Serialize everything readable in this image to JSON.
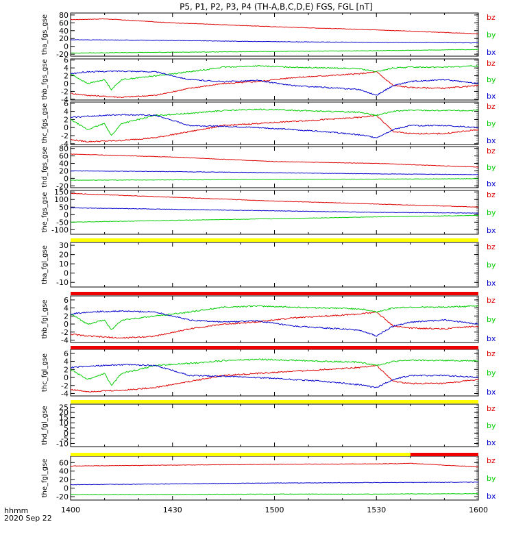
{
  "title": "P5, P1, P2, P3, P4 (TH-A,B,C,D,E) FGS, FGL [nT]",
  "time_axis": {
    "label_line1": "hhmm",
    "label_line2": "2020 Sep 22",
    "ticks": [
      "1400",
      "1430",
      "1500",
      "1530",
      "1600"
    ],
    "range_minutes": [
      0,
      120
    ]
  },
  "colors": {
    "bz": "#dd0000",
    "by": "#00cc00",
    "bx": "#0000cc",
    "bar_yellow": "#ffff00",
    "bar_red": "#ee0000"
  },
  "legend_labels": [
    "bz",
    "by",
    "bx"
  ],
  "chart_data": [
    {
      "type": "line",
      "panel": "tha_fgs_gse",
      "ylabel": "tha_fgs_gse",
      "ylim": [
        -25,
        85
      ],
      "yticks": [
        {
          "v": 80,
          "t": "80"
        },
        {
          "v": 60,
          "t": "60"
        },
        {
          "v": 40,
          "t": "40"
        },
        {
          "v": 20,
          "t": "20"
        },
        {
          "v": 0,
          "t": "0"
        },
        {
          "v": -20,
          "t": "-20"
        }
      ],
      "series": [
        {
          "name": "bz",
          "x": [
            0,
            10,
            30,
            60,
            90,
            120
          ],
          "values": [
            68,
            70,
            60,
            50,
            42,
            32
          ]
        },
        {
          "name": "by",
          "x": [
            0,
            30,
            60,
            90,
            120
          ],
          "values": [
            -17,
            -15,
            -13,
            -11,
            -8
          ]
        },
        {
          "name": "bx",
          "x": [
            0,
            30,
            60,
            90,
            120
          ],
          "values": [
            17,
            15,
            12,
            10,
            9
          ]
        }
      ]
    },
    {
      "type": "line",
      "panel": "thb_fgs_gse",
      "ylabel": "thb_fgs_gse",
      "ylim": [
        -4.2,
        6.3
      ],
      "yticks": [
        {
          "v": 6,
          "t": "6"
        },
        {
          "v": 4,
          "t": "4"
        },
        {
          "v": 2,
          "t": "2"
        },
        {
          "v": 0,
          "t": "0"
        },
        {
          "v": -2,
          "t": "-2"
        },
        {
          "v": -4,
          "t": "-4"
        }
      ],
      "series": [
        {
          "name": "bz",
          "x": [
            0,
            5,
            15,
            25,
            35,
            45,
            55,
            65,
            75,
            85,
            90,
            95,
            100,
            110,
            120
          ],
          "values": [
            -2.5,
            -3,
            -3.5,
            -3,
            -1.2,
            0,
            0.5,
            1.5,
            2,
            2.5,
            3,
            -0.5,
            -1,
            -1.2,
            -0.5
          ]
        },
        {
          "name": "by",
          "x": [
            0,
            5,
            10,
            12,
            15,
            25,
            35,
            45,
            55,
            65,
            75,
            85,
            90,
            95,
            100,
            110,
            120
          ],
          "values": [
            2.5,
            0,
            1,
            -1.5,
            1,
            2,
            3,
            4.2,
            4.5,
            4.2,
            4,
            3.8,
            3,
            4,
            4.2,
            4.2,
            4.5
          ]
        },
        {
          "name": "bx",
          "x": [
            0,
            5,
            15,
            25,
            35,
            45,
            55,
            65,
            75,
            85,
            90,
            95,
            100,
            110,
            120
          ],
          "values": [
            2.5,
            3,
            3.2,
            3,
            1,
            0.5,
            0.8,
            -0.5,
            -1,
            -1.5,
            -3,
            -0.5,
            0.5,
            1,
            0
          ]
        }
      ]
    },
    {
      "type": "line",
      "panel": "thc_fgs_gse",
      "ylabel": "thc_fgs_gse",
      "ylim": [
        -4.2,
        6.3
      ],
      "yticks": [
        {
          "v": 6,
          "t": "6"
        },
        {
          "v": 4,
          "t": "4"
        },
        {
          "v": 2,
          "t": "2"
        },
        {
          "v": 0,
          "t": "0"
        },
        {
          "v": -2,
          "t": "-2"
        },
        {
          "v": -4,
          "t": "-4"
        }
      ],
      "series": [
        {
          "name": "bz",
          "x": [
            0,
            5,
            15,
            25,
            35,
            45,
            55,
            65,
            75,
            85,
            90,
            95,
            100,
            110,
            120
          ],
          "values": [
            -3,
            -3.5,
            -3.2,
            -2.5,
            -1,
            0.5,
            1,
            1.5,
            2,
            2.5,
            3,
            -1,
            -1.5,
            -1.5,
            -0.5
          ]
        },
        {
          "name": "by",
          "x": [
            0,
            5,
            10,
            12,
            15,
            25,
            35,
            45,
            55,
            65,
            75,
            85,
            90,
            95,
            100,
            110,
            120
          ],
          "values": [
            2,
            -0.5,
            1,
            -2,
            1,
            3,
            3.5,
            4.2,
            4.5,
            4.3,
            4,
            3.8,
            3,
            4,
            4.3,
            4.2,
            4.2
          ]
        },
        {
          "name": "bx",
          "x": [
            0,
            5,
            15,
            25,
            35,
            45,
            55,
            65,
            75,
            85,
            90,
            95,
            100,
            110,
            120
          ],
          "values": [
            2.5,
            2.8,
            3.2,
            3,
            0.5,
            0.3,
            0,
            -0.5,
            -1,
            -1.8,
            -2.5,
            -0.5,
            0.5,
            0.5,
            0
          ]
        }
      ]
    },
    {
      "type": "line",
      "panel": "thd_fgs_gse",
      "ylabel": "thd_fgs_gse",
      "ylim": [
        -25,
        85
      ],
      "yticks": [
        {
          "v": 80,
          "t": "80"
        },
        {
          "v": 60,
          "t": "60"
        },
        {
          "v": 40,
          "t": "40"
        },
        {
          "v": 20,
          "t": "20"
        },
        {
          "v": 0,
          "t": "0"
        },
        {
          "v": -20,
          "t": "-20"
        }
      ],
      "series": [
        {
          "name": "bz",
          "x": [
            0,
            30,
            60,
            90,
            120
          ],
          "values": [
            65,
            57,
            45,
            40,
            30
          ]
        },
        {
          "name": "by",
          "x": [
            0,
            30,
            60,
            90,
            120
          ],
          "values": [
            -5,
            -4,
            -3,
            -2,
            -1
          ]
        },
        {
          "name": "bx",
          "x": [
            0,
            30,
            60,
            90,
            120
          ],
          "values": [
            20,
            18,
            15,
            12,
            10
          ]
        }
      ]
    },
    {
      "type": "line",
      "panel": "the_fgs_gse",
      "ylabel": "the_fgs_gse",
      "ylim": [
        -130,
        160
      ],
      "yticks": [
        {
          "v": 150,
          "t": "150"
        },
        {
          "v": 100,
          "t": "100"
        },
        {
          "v": 50,
          "t": "50"
        },
        {
          "v": 0,
          "t": "0"
        },
        {
          "v": -50,
          "t": "-50"
        },
        {
          "v": -100,
          "t": "-100"
        }
      ],
      "series": [
        {
          "name": "bz",
          "x": [
            0,
            30,
            60,
            90,
            120
          ],
          "values": [
            140,
            115,
            90,
            70,
            50
          ]
        },
        {
          "name": "by",
          "x": [
            0,
            30,
            60,
            90,
            120
          ],
          "values": [
            -50,
            -38,
            -27,
            -15,
            -5
          ]
        },
        {
          "name": "bx",
          "x": [
            0,
            30,
            60,
            90,
            120
          ],
          "values": [
            45,
            35,
            25,
            15,
            10
          ]
        }
      ]
    },
    {
      "type": "line",
      "panel": "tha_fgl_gse",
      "ylabel": "tha_fgl_gse",
      "ylim": [
        -15,
        33
      ],
      "yticks": [
        {
          "v": 30,
          "t": "30"
        },
        {
          "v": 20,
          "t": "20"
        },
        {
          "v": 10,
          "t": "10"
        },
        {
          "v": 0,
          "t": "0"
        },
        {
          "v": -10,
          "t": "-10"
        }
      ],
      "series": [],
      "bar": [
        {
          "color": "yellow",
          "from": 0,
          "to": 120
        }
      ]
    },
    {
      "type": "line",
      "panel": "thb_fgl_gse",
      "ylabel": "thb_fgl_gse",
      "ylim": [
        -4.6,
        7
      ],
      "yticks": [
        {
          "v": 6,
          "t": "6"
        },
        {
          "v": 4,
          "t": "4"
        },
        {
          "v": 2,
          "t": "2"
        },
        {
          "v": 0,
          "t": "0"
        },
        {
          "v": -2,
          "t": "-2"
        },
        {
          "v": -4,
          "t": "-4"
        }
      ],
      "series": [
        {
          "name": "bz",
          "x": [
            0,
            5,
            15,
            25,
            35,
            45,
            55,
            65,
            75,
            85,
            90,
            95,
            100,
            110,
            120
          ],
          "values": [
            -2.5,
            -3,
            -3.5,
            -3,
            -1.2,
            0,
            0.5,
            1.5,
            2,
            2.5,
            3,
            -0.5,
            -1,
            -1.2,
            -0.5
          ]
        },
        {
          "name": "by",
          "x": [
            0,
            5,
            10,
            12,
            15,
            25,
            35,
            45,
            55,
            65,
            75,
            85,
            90,
            95,
            100,
            110,
            120
          ],
          "values": [
            2.5,
            0,
            1,
            -1.5,
            1,
            2,
            3,
            4.2,
            4.5,
            4.2,
            4,
            3.8,
            3,
            4,
            4.2,
            4.2,
            4.5
          ]
        },
        {
          "name": "bx",
          "x": [
            0,
            5,
            15,
            25,
            35,
            45,
            55,
            65,
            75,
            85,
            90,
            95,
            100,
            110,
            120
          ],
          "values": [
            2.5,
            3,
            3.2,
            3,
            1,
            0.5,
            0.8,
            -0.5,
            -1,
            -1.5,
            -3,
            -0.5,
            0.5,
            1,
            0
          ]
        }
      ],
      "bar": [
        {
          "color": "red",
          "from": 0,
          "to": 120
        }
      ]
    },
    {
      "type": "line",
      "panel": "thc_fgl_gse",
      "ylabel": "thc_fgl_gse",
      "ylim": [
        -4.6,
        7
      ],
      "yticks": [
        {
          "v": 6,
          "t": "6"
        },
        {
          "v": 4,
          "t": "4"
        },
        {
          "v": 2,
          "t": "2"
        },
        {
          "v": 0,
          "t": "0"
        },
        {
          "v": -2,
          "t": "-2"
        },
        {
          "v": -4,
          "t": "-4"
        }
      ],
      "series": [
        {
          "name": "bz",
          "x": [
            0,
            5,
            15,
            25,
            35,
            45,
            55,
            65,
            75,
            85,
            90,
            95,
            100,
            110,
            120
          ],
          "values": [
            -3,
            -3.5,
            -3.2,
            -2.5,
            -1,
            0.5,
            1,
            1.5,
            2,
            2.5,
            3,
            -1,
            -1.5,
            -1.5,
            -0.5
          ]
        },
        {
          "name": "by",
          "x": [
            0,
            5,
            10,
            12,
            15,
            25,
            35,
            45,
            55,
            65,
            75,
            85,
            90,
            95,
            100,
            110,
            120
          ],
          "values": [
            2,
            -0.5,
            1,
            -2,
            1,
            3,
            3.5,
            4.2,
            4.5,
            4.3,
            4,
            3.8,
            3,
            4,
            4.3,
            4.2,
            4.2
          ]
        },
        {
          "name": "bx",
          "x": [
            0,
            5,
            15,
            25,
            35,
            45,
            55,
            65,
            75,
            85,
            90,
            95,
            100,
            110,
            120
          ],
          "values": [
            2.5,
            2.8,
            3.2,
            3,
            0.5,
            0.3,
            0,
            -0.5,
            -1,
            -1.8,
            -2.5,
            -0.5,
            0.5,
            0.5,
            0
          ]
        }
      ],
      "bar": [
        {
          "color": "red",
          "from": 0,
          "to": 120
        }
      ]
    },
    {
      "type": "line",
      "panel": "thd_fgl_gse",
      "ylabel": "thd_fgl_gse",
      "ylim": [
        -13,
        28
      ],
      "yticks": [
        {
          "v": 25,
          "t": "25"
        },
        {
          "v": 20,
          "t": "20"
        },
        {
          "v": 15,
          "t": "15"
        },
        {
          "v": 10,
          "t": "10"
        },
        {
          "v": 5,
          "t": "5"
        },
        {
          "v": 0,
          "t": "0"
        },
        {
          "v": -5,
          "t": "-5"
        },
        {
          "v": -10,
          "t": "-10"
        }
      ],
      "series": [],
      "bar": [
        {
          "color": "yellow",
          "from": 0,
          "to": 120
        }
      ]
    },
    {
      "type": "line",
      "panel": "the_fgl_gse",
      "ylabel": "the_fgl_gse",
      "ylim": [
        -28,
        75
      ],
      "yticks": [
        {
          "v": 60,
          "t": "60"
        },
        {
          "v": 40,
          "t": "40"
        },
        {
          "v": 20,
          "t": "20"
        },
        {
          "v": 0,
          "t": "0"
        },
        {
          "v": -20,
          "t": "-20"
        }
      ],
      "series": [
        {
          "name": "bz",
          "x": [
            0,
            30,
            60,
            90,
            100,
            110,
            120
          ],
          "values": [
            52,
            54,
            56,
            57,
            58,
            54,
            50
          ]
        },
        {
          "name": "by",
          "x": [
            0,
            30,
            60,
            90,
            120
          ],
          "values": [
            -15,
            -15,
            -14,
            -14,
            -13
          ]
        },
        {
          "name": "bx",
          "x": [
            0,
            30,
            60,
            90,
            120
          ],
          "values": [
            8,
            10,
            12,
            13,
            14
          ]
        }
      ],
      "bar": [
        {
          "color": "yellow",
          "from": 0,
          "to": 100
        },
        {
          "color": "red",
          "from": 100,
          "to": 120
        }
      ]
    }
  ]
}
